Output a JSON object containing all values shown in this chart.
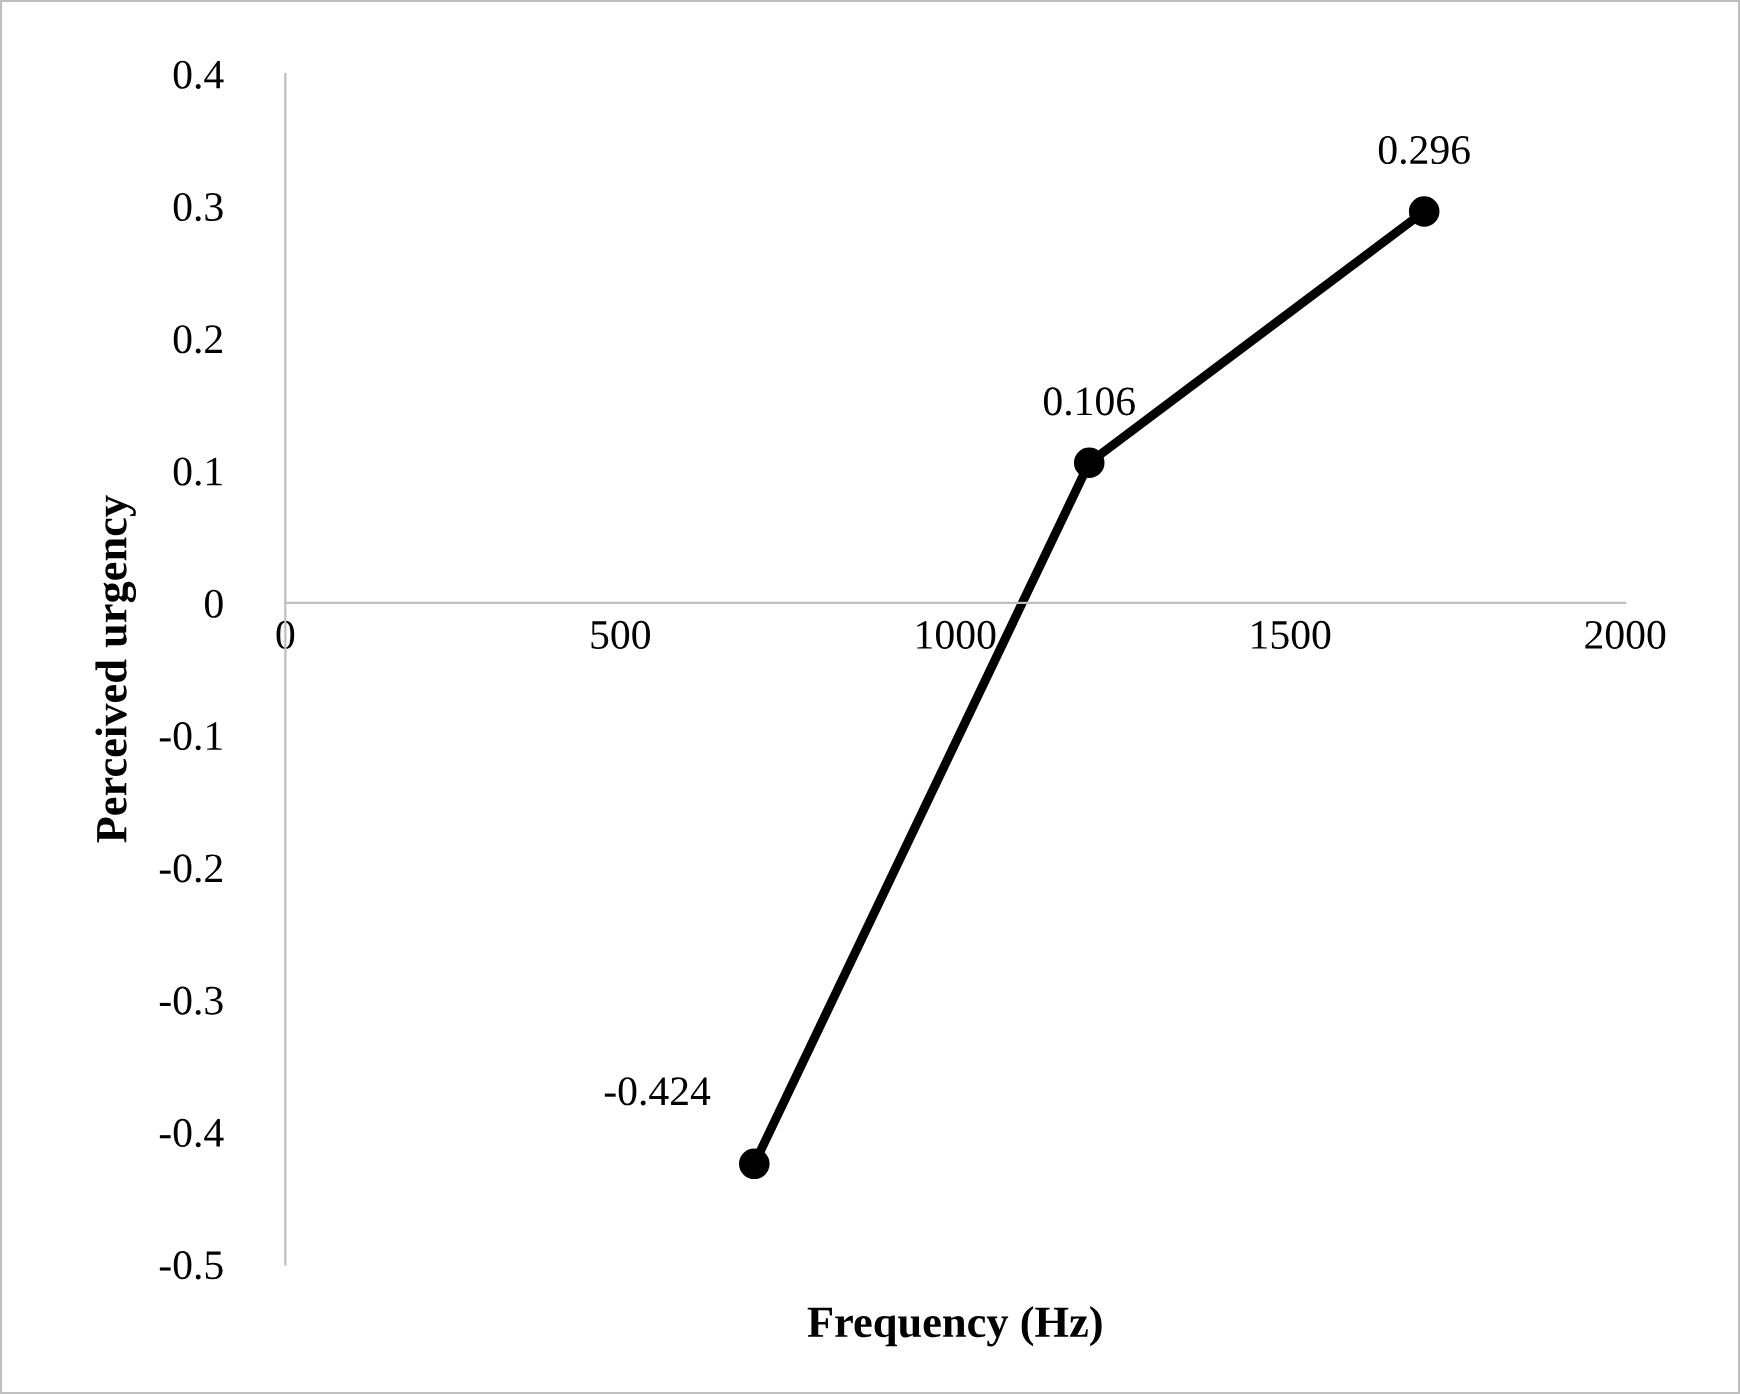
{
  "chart_data": {
    "type": "line",
    "xlabel": "Frequency (Hz)",
    "ylabel": "Perceived urgency",
    "x": [
      700,
      1200,
      1700
    ],
    "series": [
      {
        "color": "#000000",
        "values": [
          -0.424,
          0.106,
          0.296
        ]
      }
    ],
    "xlim": [
      0,
      2000
    ],
    "xticks": [
      0,
      500,
      1000,
      1500,
      2000
    ],
    "ylim": [
      -0.5,
      0.4
    ],
    "yticks": [
      -0.5,
      -0.4,
      -0.3,
      -0.2,
      -0.1,
      0,
      0.1,
      0.2,
      0.3,
      0.4
    ],
    "marker": "circle",
    "line_style": "solid",
    "data_labels": true,
    "grid": false,
    "legend": false
  }
}
